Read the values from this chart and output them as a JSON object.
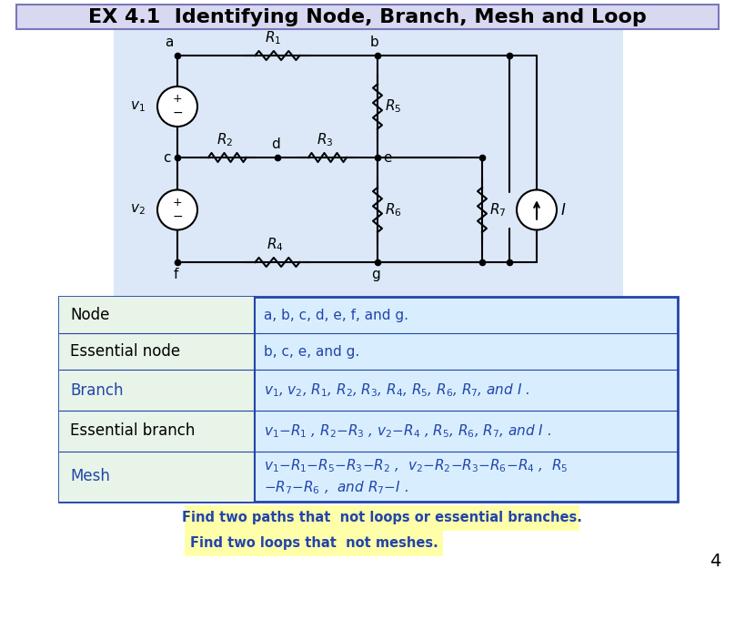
{
  "title": "EX 4.1  Identifying Node, Branch, Mesh and Loop",
  "bg_color": "#ffffff",
  "title_box_color": "#b8b8e8",
  "title_text_color": "#000000",
  "circuit_line_color": "#000000",
  "circuit_bg": "#dce8f8",
  "table_border_color": "#2244aa",
  "table_left_bg": "#e8f4e8",
  "table_right_bg": "#d8eeff",
  "table_label_color_blue": "#2244aa",
  "table_label_color_black": "#000000",
  "table_text_color": "#2244aa",
  "note_bg_color": "#ffffaa",
  "note_text_color": "#2244aa",
  "page_number": "4",
  "rows": [
    {
      "label": "Node",
      "text": "a, b, c, d, e, f, and g.",
      "label_blue": false
    },
    {
      "label": "Essential node",
      "text": "b, c, e, and g.",
      "label_blue": false
    },
    {
      "label": "Branch",
      "text": "$v_1$, $v_2$, $R_1$, $R_2$, $R_3$, $R_4$, $R_5$, $R_6$, $R_7$, and $I$ .",
      "label_blue": true
    },
    {
      "label": "Essential branch",
      "text": "$v_1$$-$$R_1$ , $R_2$$-$$R_3$ , $v_2$$-$$R_4$ , $R_5$, $R_6$, $R_7$, and $I$ .",
      "label_blue": false
    },
    {
      "label": "Mesh",
      "text1": "$v_1$$-$$R_1$$-$$R_5$$-$$R_3$$-$$R_2$ ,  $v_2$$-$$R_2$$-$$R_3$$-$$R_6$$-$$R_4$ ,  $R_5$",
      "text2": "$-$$R_7$$-$$R_6$ ,  and $R_7$$-$$I$ .",
      "label_blue": true
    }
  ],
  "note1": "Find two paths that  not loops or essential branches.",
  "note2": "Find two loops that  not meshes."
}
